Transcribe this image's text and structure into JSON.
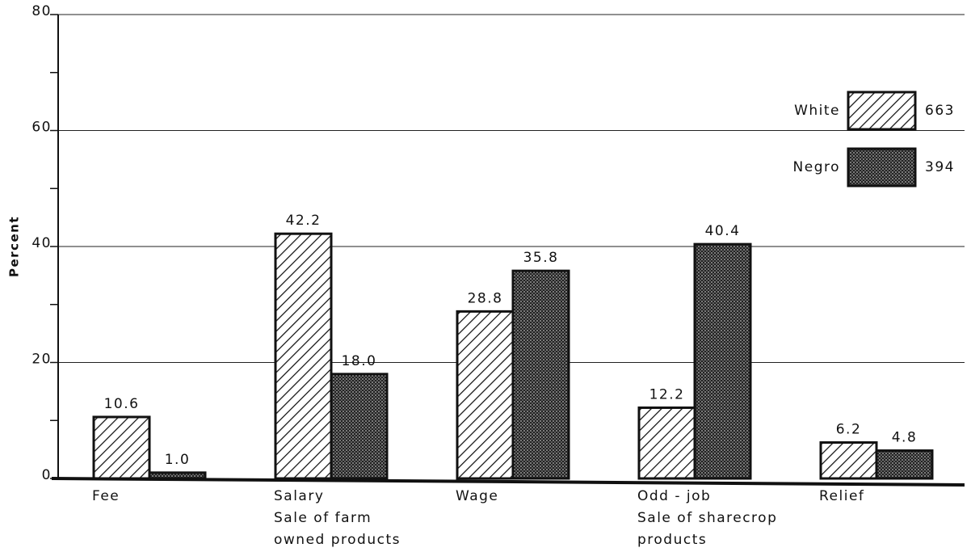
{
  "chart_data": {
    "type": "bar",
    "y_label": "Percent",
    "categories": [
      [
        "Fee"
      ],
      [
        "Salary",
        "Sale of farm",
        "owned products"
      ],
      [
        "Wage"
      ],
      [
        "Odd - job",
        "Sale of sharecrop",
        "products"
      ],
      [
        "Relief"
      ]
    ],
    "series": [
      {
        "name": "White",
        "n": 663,
        "pattern": "hatch",
        "color": "#111111",
        "values": [
          10.6,
          42.2,
          28.8,
          12.2,
          6.2
        ]
      },
      {
        "name": "Negro",
        "n": 394,
        "pattern": "dots",
        "color": "#111111",
        "values": [
          1,
          18,
          35.8,
          40.4,
          4.8
        ],
        "value_labels": [
          "1.0",
          "18.0",
          "35.8",
          "40.4",
          "4.8"
        ]
      }
    ],
    "ylim": [
      0,
      80
    ],
    "yticks": [
      0,
      20,
      40,
      60,
      80
    ],
    "yminor": [
      10,
      30,
      50,
      70
    ],
    "grid": true
  }
}
